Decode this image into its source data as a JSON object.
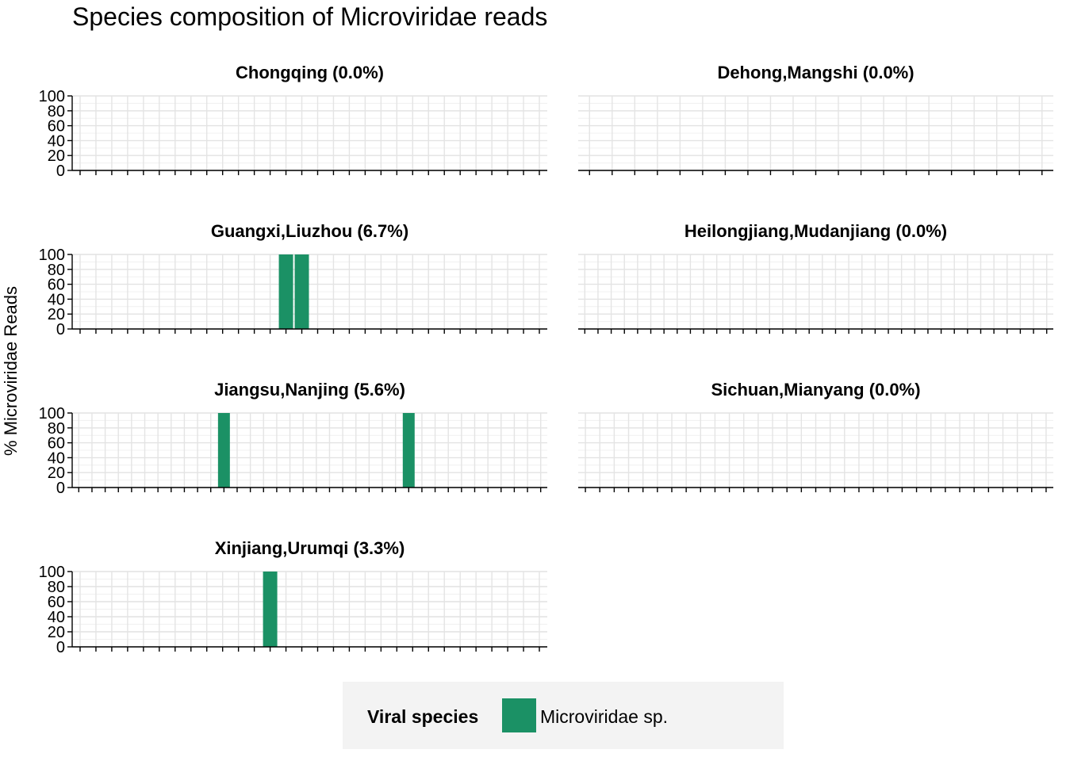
{
  "chart_data": {
    "type": "bar",
    "title": "Species composition of Microviridae reads",
    "ylabel": "% Microviridae Reads",
    "xlabel": "",
    "ylim": [
      0,
      100
    ],
    "yticks": [
      0,
      20,
      40,
      60,
      80,
      100
    ],
    "grid": true,
    "legend": {
      "title": "Viral species",
      "position": "bottom",
      "entries": [
        {
          "name": "Microviridae sp.",
          "color": "#1b9165"
        }
      ]
    },
    "series_color": "#1b9165",
    "panels": [
      {
        "label": "Chongqing (0.0%)",
        "n_samples": 30,
        "bars": []
      },
      {
        "label": "Dehong,Mangshi (0.0%)",
        "n_samples": 21,
        "bars": []
      },
      {
        "label": "Guangxi,Liuzhou (6.7%)",
        "n_samples": 30,
        "bars": [
          {
            "index": 13,
            "value": 100
          },
          {
            "index": 14,
            "value": 100
          }
        ]
      },
      {
        "label": "Heilongjiang,Mudanjiang (0.0%)",
        "n_samples": 36,
        "bars": []
      },
      {
        "label": "Jiangsu,Nanjing (5.6%)",
        "n_samples": 36,
        "bars": [
          {
            "index": 11,
            "value": 100
          },
          {
            "index": 25,
            "value": 100
          }
        ]
      },
      {
        "label": "Sichuan,Mianyang (0.0%)",
        "n_samples": 33,
        "bars": []
      },
      {
        "label": "Xinjiang,Urumqi (3.3%)",
        "n_samples": 30,
        "bars": [
          {
            "index": 12,
            "value": 100
          }
        ]
      }
    ]
  }
}
